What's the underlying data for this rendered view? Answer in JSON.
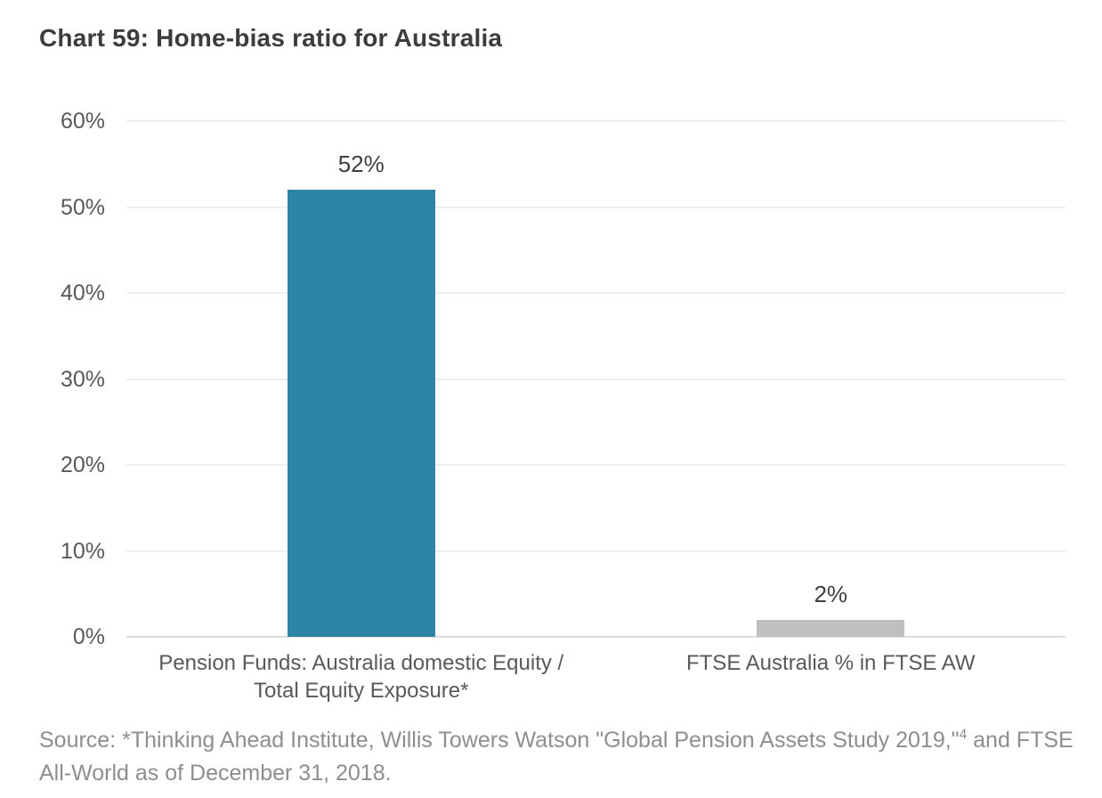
{
  "page": {
    "background": "#FFFFFF"
  },
  "chart_data": {
    "type": "bar",
    "title": "Chart 59: Home-bias ratio for Australia",
    "categories": [
      "Pension Funds: Australia domestic Equity / Total Equity Exposure*",
      "FTSE Australia % in FTSE AW"
    ],
    "category_lines": [
      [
        "Pension Funds: Australia domestic Equity /",
        "Total Equity Exposure*"
      ],
      [
        "FTSE Australia % in FTSE AW"
      ]
    ],
    "values": [
      52,
      2
    ],
    "data_labels": [
      "52%",
      "2%"
    ],
    "bar_colors": [
      "#2E84A4",
      "#BFBFBF"
    ],
    "xlabel": "",
    "ylabel": "",
    "ylim": [
      0,
      60
    ],
    "ytick_labels": [
      "0%",
      "10%",
      "20%",
      "30%",
      "40%",
      "50%",
      "60%"
    ],
    "grid": true,
    "legend": false,
    "gridline_color": "#EFEFEF",
    "axis_line_color": "#DCDCDC",
    "title_color": "#3C3C3C",
    "tick_label_color": "#595959",
    "data_label_color": "#3F3F3F"
  },
  "source": {
    "text_before_superscript": "Source: *Thinking Ahead Institute, Willis Towers Watson \"Global Pension Assets Study 2019,\"",
    "superscript": "4",
    "text_after_superscript": " and FTSE All-World as of December 31, 2018.",
    "color": "#8E8E8E"
  }
}
